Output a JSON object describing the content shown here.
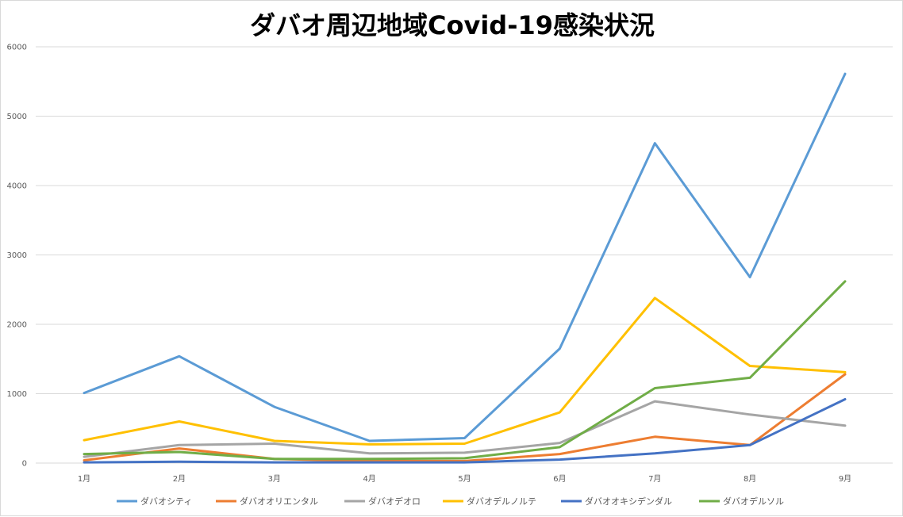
{
  "chart_data": {
    "type": "line",
    "title": "ダバオ周辺地域Covid-19感染状況",
    "xlabel": "",
    "ylabel": "",
    "categories": [
      "1月",
      "2月",
      "3月",
      "4月",
      "5月",
      "6月",
      "7月",
      "8月",
      "9月"
    ],
    "ylim": [
      0,
      6000
    ],
    "yticks": [
      0,
      1000,
      2000,
      3000,
      4000,
      5000,
      6000
    ],
    "grid": true,
    "legend_position": "bottom",
    "series": [
      {
        "name": "ダバオシティ",
        "color": "#5b9bd5",
        "values": [
          1010,
          1540,
          810,
          320,
          360,
          1650,
          4610,
          2680,
          5610
        ]
      },
      {
        "name": "ダバオオリエンタル",
        "color": "#ed7d31",
        "values": [
          40,
          210,
          60,
          30,
          30,
          130,
          380,
          260,
          1280
        ]
      },
      {
        "name": "ダバオデオロ",
        "color": "#a5a5a5",
        "values": [
          90,
          260,
          280,
          140,
          150,
          290,
          890,
          700,
          540
        ]
      },
      {
        "name": "ダバオデルノルテ",
        "color": "#ffc000",
        "values": [
          330,
          600,
          320,
          270,
          280,
          730,
          2380,
          1400,
          1310
        ]
      },
      {
        "name": "ダバオオキシデンダル",
        "color": "#4472c4",
        "values": [
          10,
          20,
          10,
          10,
          10,
          50,
          140,
          260,
          920
        ]
      },
      {
        "name": "ダバオデルソル",
        "color": "#70ad47",
        "values": [
          130,
          160,
          60,
          60,
          70,
          230,
          1080,
          1230,
          2620
        ]
      }
    ]
  }
}
